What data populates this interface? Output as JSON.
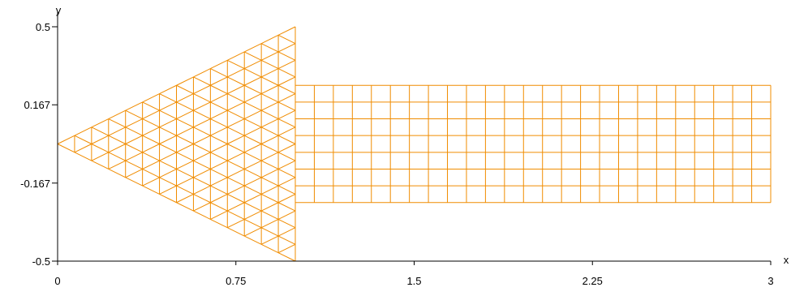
{
  "chart_data": {
    "type": "mesh",
    "xlabel": "x",
    "ylabel": "y",
    "xlim": [
      0,
      3
    ],
    "ylim": [
      -0.5,
      0.5
    ],
    "x_ticks": [
      0,
      0.75,
      1.5,
      2.25,
      3
    ],
    "x_tick_labels": [
      "0",
      "0.75",
      "1.5",
      "2.25",
      "3"
    ],
    "y_ticks": [
      -0.5,
      -0.167,
      0.167,
      0.5
    ],
    "y_tick_labels": [
      "-0.5",
      "-0.167",
      "0.167",
      "0.5"
    ],
    "grid": false,
    "mesh_color": "#f08c00",
    "triangle_region": {
      "tip": [
        0,
        0
      ],
      "base_x": 1,
      "base_y_range": [
        -0.5,
        0.5
      ],
      "subdivisions": 14
    },
    "rectangle_region": {
      "x_range": [
        1,
        3
      ],
      "y_range": [
        -0.25,
        0.25
      ],
      "columns": 25,
      "rows": 7
    }
  }
}
